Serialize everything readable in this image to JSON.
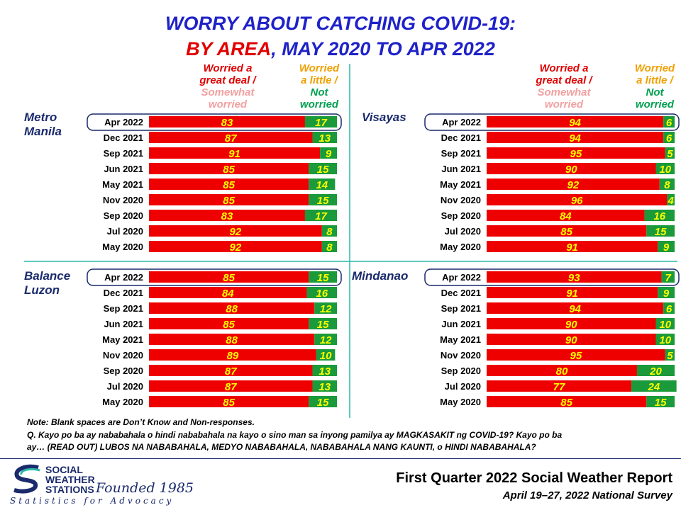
{
  "title_line1": "WORRY ABOUT CATCHING COVID-19:",
  "title_line2_red": "BY AREA",
  "title_line2_blue": ", MAY 2020 TO APR 2022",
  "legend": {
    "worried_a": "Worried a",
    "great_deal": "great deal /",
    "somewhat": "Somewhat",
    "worried2": "worried",
    "worried_b": "Worried",
    "a_little": "a little /",
    "not": "Not",
    "worried3": "worried"
  },
  "colors": {
    "red": "#ee0000",
    "green": "#1a9a3a",
    "label_yellow": "#ffff00",
    "frame": "#1a2a6c",
    "divider": "#2ab7a9"
  },
  "note_line1": "Note: Blank spaces are Don’t Know and Non-responses.",
  "note_line2": "Q. Kayo po ba ay nababahala o hindi nababahala na kayo o sino man sa inyong pamilya ay MAGKASAKIT ng COVID-19? Kayo po ba",
  "note_line3": "ay… (READ OUT) LUBOS NA NABABAHALA, MEDYO NABABAHALA, NABABAHALA NANG KAUNTI, o HINDI NABABAHALA?",
  "footer_line1": "First Quarter 2022 Social Weather Report",
  "footer_line2": "April 19–27, 2022 National Survey",
  "logo": {
    "line1": "SOCIAL",
    "line2": "WEATHER",
    "line3": "STATIONS",
    "founded": "Founded 1985",
    "tagline": "Statistics for Advocacy"
  },
  "chart_data": [
    {
      "type": "bar",
      "region": "Metro Manila",
      "region_line1": "Metro",
      "region_line2": "Manila",
      "categories": [
        "Apr 2022",
        "Dec 2021",
        "Sep 2021",
        "Jun 2021",
        "May 2021",
        "Nov 2020",
        "Sep 2020",
        "Jul 2020",
        "May 2020"
      ],
      "series": [
        {
          "name": "Worried a great deal / Somewhat worried",
          "values": [
            83,
            87,
            91,
            85,
            85,
            85,
            83,
            92,
            92
          ]
        },
        {
          "name": "Worried a little / Not worried",
          "values": [
            17,
            13,
            9,
            15,
            14,
            15,
            17,
            8,
            8
          ]
        }
      ]
    },
    {
      "type": "bar",
      "region": "Visayas",
      "region_line1": "Visayas",
      "region_line2": "",
      "categories": [
        "Apr 2022",
        "Dec 2021",
        "Sep 2021",
        "Jun 2021",
        "May 2021",
        "Nov 2020",
        "Sep 2020",
        "Jul 2020",
        "May 2020"
      ],
      "series": [
        {
          "name": "Worried a great deal / Somewhat worried",
          "values": [
            94,
            94,
            95,
            90,
            92,
            96,
            84,
            85,
            91
          ]
        },
        {
          "name": "Worried a little / Not worried",
          "values": [
            6,
            6,
            5,
            10,
            8,
            4,
            16,
            15,
            9
          ]
        }
      ]
    },
    {
      "type": "bar",
      "region": "Balance Luzon",
      "region_line1": "Balance",
      "region_line2": "Luzon",
      "categories": [
        "Apr 2022",
        "Dec 2021",
        "Sep 2021",
        "Jun 2021",
        "May 2021",
        "Nov 2020",
        "Sep 2020",
        "Jul 2020",
        "May 2020"
      ],
      "series": [
        {
          "name": "Worried a great deal / Somewhat worried",
          "values": [
            85,
            84,
            88,
            85,
            88,
            89,
            87,
            87,
            85
          ]
        },
        {
          "name": "Worried a little / Not worried",
          "values": [
            15,
            16,
            12,
            15,
            12,
            10,
            13,
            13,
            15
          ]
        }
      ]
    },
    {
      "type": "bar",
      "region": "Mindanao",
      "region_line1": "Mindanao",
      "region_line2": "",
      "categories": [
        "Apr 2022",
        "Dec 2021",
        "Sep 2021",
        "Jun 2021",
        "May 2021",
        "Nov 2020",
        "Sep 2020",
        "Jul 2020",
        "May 2020"
      ],
      "series": [
        {
          "name": "Worried a great deal / Somewhat worried",
          "values": [
            93,
            91,
            94,
            90,
            90,
            95,
            80,
            77,
            85
          ]
        },
        {
          "name": "Worried a little / Not worried",
          "values": [
            7,
            9,
            6,
            10,
            10,
            5,
            20,
            24,
            15
          ]
        }
      ]
    }
  ]
}
